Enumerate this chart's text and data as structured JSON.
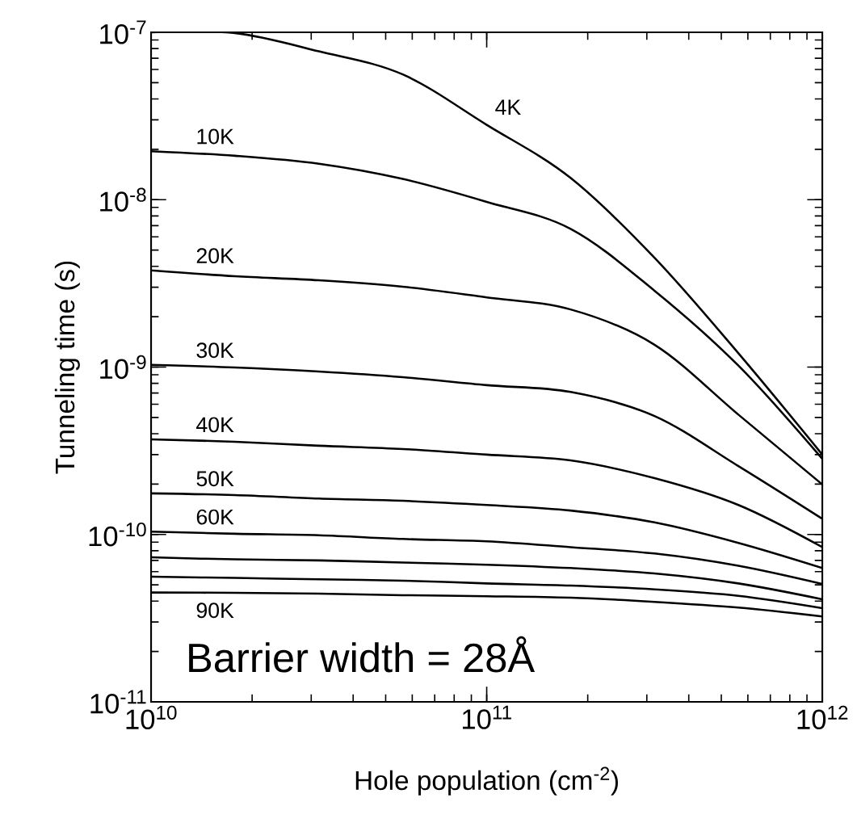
{
  "chart_data": {
    "type": "line",
    "log": "xy",
    "xlabel": "Hole population (cm$^{-2}$)",
    "ylabel": "Tunneling time (s)",
    "xlim": [
      10000000000.0,
      1000000000000.0
    ],
    "ylim": [
      1e-11,
      1e-07
    ],
    "xticks": [
      {
        "value": 10000000000.0,
        "label": "10$^{10}$"
      },
      {
        "value": 100000000000.0,
        "label": "10$^{11}$"
      },
      {
        "value": 1000000000000.0,
        "label": "10$^{12}$"
      }
    ],
    "yticks": [
      {
        "value": 1e-11,
        "label": "10$^{-11}$"
      },
      {
        "value": 1e-10,
        "label": "10$^{-10}$"
      },
      {
        "value": 1e-09,
        "label": "10$^{-9}$"
      },
      {
        "value": 1e-08,
        "label": "10$^{-8}$"
      },
      {
        "value": 1e-07,
        "label": "10$^{-7}$"
      }
    ],
    "grid": false,
    "legend": "left",
    "marker": "none",
    "line_style": "solid",
    "x": [
      10000000000.0,
      17780000000.0,
      31620000000.0,
      56230000000.0,
      100000000000.0,
      177800000000.0,
      316200000000.0,
      562300000000.0,
      1000000000000.0
    ],
    "series": [
      {
        "name": "4K",
        "color": "#000000",
        "values": [
          1e-07,
          9.9e-08,
          7.7e-08,
          5.6e-08,
          2.8e-08,
          1.35e-08,
          4.5e-09,
          1.21e-09,
          3e-10
        ]
      },
      {
        "name": "10K",
        "color": "#000000",
        "values": [
          1.95e-08,
          1.83e-08,
          1.64e-08,
          1.33e-08,
          9.7e-09,
          6.7e-09,
          2.86e-09,
          1.02e-09,
          2.83e-10
        ]
      },
      {
        "name": "20K",
        "color": "#000000",
        "values": [
          3.78e-09,
          3.49e-09,
          3.3e-09,
          3.02e-09,
          2.61e-09,
          2.21e-09,
          1.36e-09,
          5.2e-10,
          1.99e-10
        ]
      },
      {
        "name": "30K",
        "color": "#000000",
        "values": [
          1.03e-09,
          9.95e-10,
          9.4e-10,
          8.7e-10,
          7.8e-10,
          7.1e-10,
          5.1e-10,
          2.56e-10,
          1.24e-10
        ]
      },
      {
        "name": "40K",
        "color": "#000000",
        "values": [
          3.7e-10,
          3.58e-10,
          3.39e-10,
          3.24e-10,
          3e-10,
          2.77e-10,
          2.17e-10,
          1.5e-10,
          8.4e-11
        ]
      },
      {
        "name": "50K",
        "color": "#000000",
        "values": [
          1.76e-10,
          1.72e-10,
          1.64e-10,
          1.59e-10,
          1.5e-10,
          1.39e-10,
          1.18e-10,
          8.9e-11,
          6.3e-11
        ]
      },
      {
        "name": "60K",
        "color": "#000000",
        "values": [
          1.04e-10,
          1.01e-10,
          9.9e-11,
          9.4e-11,
          9.1e-11,
          8.4e-11,
          7.7e-11,
          6.5e-11,
          5.06e-11
        ]
      },
      {
        "color": "#000000",
        "values": [
          7.3e-11,
          7.1e-11,
          7e-11,
          6.8e-11,
          6.6e-11,
          6.3e-11,
          5.85e-11,
          5.1e-11,
          4.1e-11
        ]
      },
      {
        "color": "#000000",
        "values": [
          5.6e-11,
          5.5e-11,
          5.4e-11,
          5.3e-11,
          5.1e-11,
          4.95e-11,
          4.7e-11,
          4.3e-11,
          3.63e-11
        ]
      },
      {
        "name": "90K",
        "color": "#000000",
        "values": [
          4.5e-11,
          4.48e-11,
          4.43e-11,
          4.34e-11,
          4.28e-11,
          4.19e-11,
          3.96e-11,
          3.66e-11,
          3.24e-11
        ]
      }
    ],
    "annotations": [
      "Barrier width = 28Å"
    ]
  }
}
